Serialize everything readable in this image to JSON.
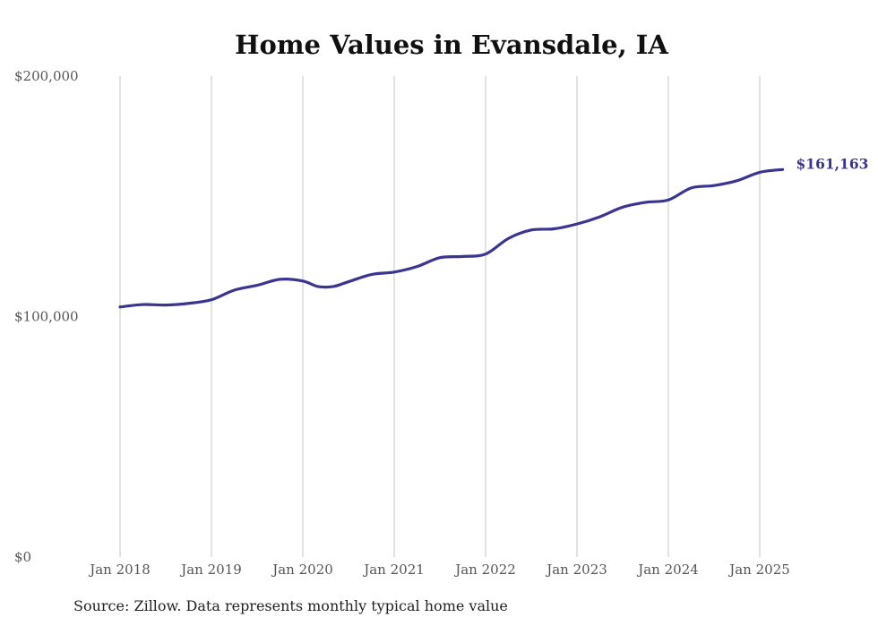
{
  "chart_data": {
    "type": "line",
    "title": "Home Values in Evansdale, IA",
    "xlabel": "",
    "ylabel": "",
    "ylim": [
      0,
      200000
    ],
    "y_ticks": [
      0,
      100000,
      200000
    ],
    "y_tick_labels": [
      "$0",
      "$100,000",
      "$200,000"
    ],
    "x_range": [
      "2018-01",
      "2025-04"
    ],
    "x_ticks": [
      "2018-01",
      "2019-01",
      "2020-01",
      "2021-01",
      "2022-01",
      "2023-01",
      "2024-01",
      "2025-01"
    ],
    "x_tick_labels": [
      "Jan 2018",
      "Jan 2019",
      "Jan 2020",
      "Jan 2021",
      "Jan 2022",
      "Jan 2023",
      "Jan 2024",
      "Jan 2025"
    ],
    "grid": "vertical",
    "line_color": "#3a3590",
    "end_label": "$161,163",
    "series": [
      {
        "points": [
          [
            "2018-01",
            104000
          ],
          [
            "2018-04",
            105000
          ],
          [
            "2018-07",
            104800
          ],
          [
            "2018-10",
            105500
          ],
          [
            "2019-01",
            107000
          ],
          [
            "2019-04",
            111000
          ],
          [
            "2019-07",
            113000
          ],
          [
            "2019-10",
            115500
          ],
          [
            "2020-01",
            114800
          ],
          [
            "2020-03",
            112500
          ],
          [
            "2020-05",
            112500
          ],
          [
            "2020-07",
            114500
          ],
          [
            "2020-10",
            117500
          ],
          [
            "2021-01",
            118500
          ],
          [
            "2021-04",
            120800
          ],
          [
            "2021-07",
            124500
          ],
          [
            "2021-10",
            125000
          ],
          [
            "2022-01",
            126000
          ],
          [
            "2022-04",
            132500
          ],
          [
            "2022-07",
            136000
          ],
          [
            "2022-10",
            136500
          ],
          [
            "2023-01",
            138500
          ],
          [
            "2023-04",
            141500
          ],
          [
            "2023-07",
            145500
          ],
          [
            "2023-10",
            147500
          ],
          [
            "2024-01",
            148500
          ],
          [
            "2024-04",
            153500
          ],
          [
            "2024-07",
            154500
          ],
          [
            "2024-10",
            156500
          ],
          [
            "2025-01",
            160000
          ],
          [
            "2025-04",
            161163
          ]
        ]
      }
    ]
  },
  "footer": {
    "source": "Source: Zillow. Data represents monthly typical home value"
  }
}
